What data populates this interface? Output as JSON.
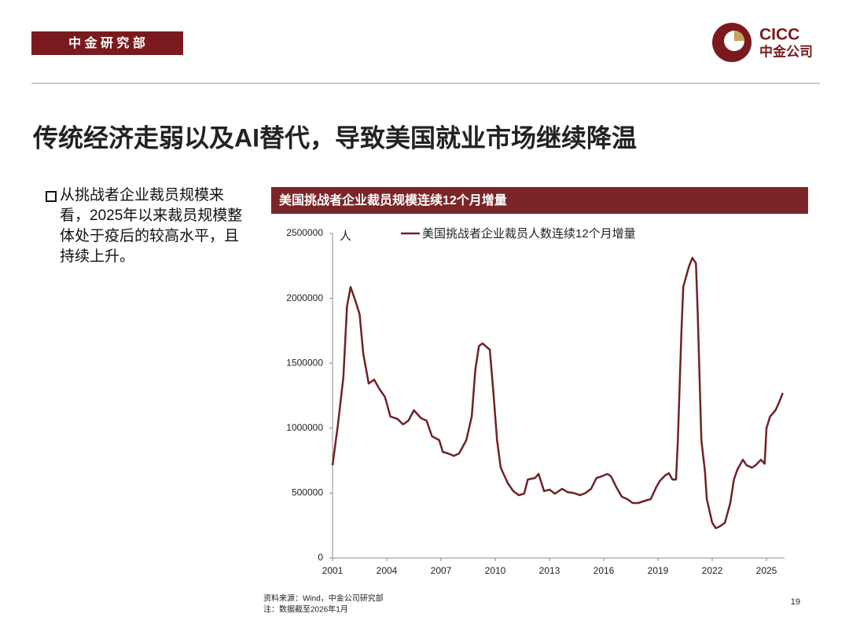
{
  "header": {
    "department": "中 金 研 究 部"
  },
  "logo": {
    "en": "CICC",
    "cn": "中金公司"
  },
  "title": "传统经济走弱以及AI替代，导致美国就业市场继续降温",
  "bullet": "从挑战者企业裁员规模来看，2025年以来裁员规模整体处于疫后的较高水平，且持续上升。",
  "chart_data": {
    "type": "line",
    "title": "美国挑战者企业裁员规模连续12个月增量",
    "y_label": "人",
    "x": [
      2001.0,
      2001.3,
      2001.6,
      2001.8,
      2002.0,
      2002.3,
      2002.5,
      2002.7,
      2002.9,
      2003.0,
      2003.3,
      2003.6,
      2003.9,
      2004.2,
      2004.6,
      2004.9,
      2005.2,
      2005.5,
      2005.9,
      2006.2,
      2006.5,
      2006.9,
      2007.1,
      2007.4,
      2007.7,
      2008.0,
      2008.4,
      2008.7,
      2008.9,
      2009.1,
      2009.3,
      2009.7,
      2009.9,
      2010.1,
      2010.3,
      2010.7,
      2011.0,
      2011.3,
      2011.6,
      2011.8,
      2012.2,
      2012.4,
      2012.7,
      2013.0,
      2013.3,
      2013.7,
      2014.0,
      2014.3,
      2014.7,
      2015.0,
      2015.3,
      2015.6,
      2015.9,
      2016.2,
      2016.4,
      2016.7,
      2017.0,
      2017.3,
      2017.6,
      2017.9,
      2018.3,
      2018.6,
      2018.9,
      2019.1,
      2019.4,
      2019.6,
      2019.8,
      2020.0,
      2020.1,
      2020.3,
      2020.4,
      2020.7,
      2020.9,
      2021.1,
      2021.2,
      2021.4,
      2021.6,
      2021.7,
      2022.0,
      2022.2,
      2022.4,
      2022.7,
      2023.0,
      2023.2,
      2023.4,
      2023.7,
      2023.9,
      2024.2,
      2024.4,
      2024.7,
      2024.9,
      2025.0,
      2025.2,
      2025.5,
      2025.7,
      2025.9
    ],
    "series": [
      {
        "name": "美国挑战者企业裁员人数连续12个月增量",
        "color": "#6e2228",
        "values": [
          714000,
          1029000,
          1392000,
          1937000,
          2088000,
          1967000,
          1876000,
          1574000,
          1422000,
          1344000,
          1374000,
          1301000,
          1241000,
          1090000,
          1071000,
          1029000,
          1059000,
          1138000,
          1077000,
          1059000,
          938000,
          908000,
          817000,
          805000,
          787000,
          805000,
          908000,
          1090000,
          1453000,
          1634000,
          1653000,
          1604000,
          1271000,
          908000,
          696000,
          575000,
          515000,
          484000,
          496000,
          605000,
          617000,
          648000,
          515000,
          527000,
          496000,
          533000,
          508000,
          502000,
          484000,
          502000,
          533000,
          617000,
          630000,
          648000,
          630000,
          545000,
          472000,
          454000,
          424000,
          424000,
          442000,
          454000,
          545000,
          593000,
          636000,
          654000,
          605000,
          605000,
          908000,
          1755000,
          2088000,
          2240000,
          2312000,
          2270000,
          1876000,
          908000,
          666000,
          454000,
          272000,
          230000,
          242000,
          272000,
          424000,
          605000,
          684000,
          757000,
          714000,
          696000,
          714000,
          757000,
          726000,
          999000,
          1090000,
          1138000,
          1199000,
          1271000
        ]
      }
    ],
    "xlim": [
      2001,
      2026
    ],
    "xticks": [
      2001,
      2004,
      2007,
      2010,
      2013,
      2016,
      2019,
      2022,
      2025
    ],
    "ylim": [
      0,
      2500000
    ],
    "yticks": [
      0,
      500000,
      1000000,
      1500000,
      2000000,
      2500000
    ]
  },
  "footnotes": {
    "source": "资料来源：Wind，中金公司研究部",
    "note": "注：数据截至2026年1月"
  },
  "page_number": "19"
}
